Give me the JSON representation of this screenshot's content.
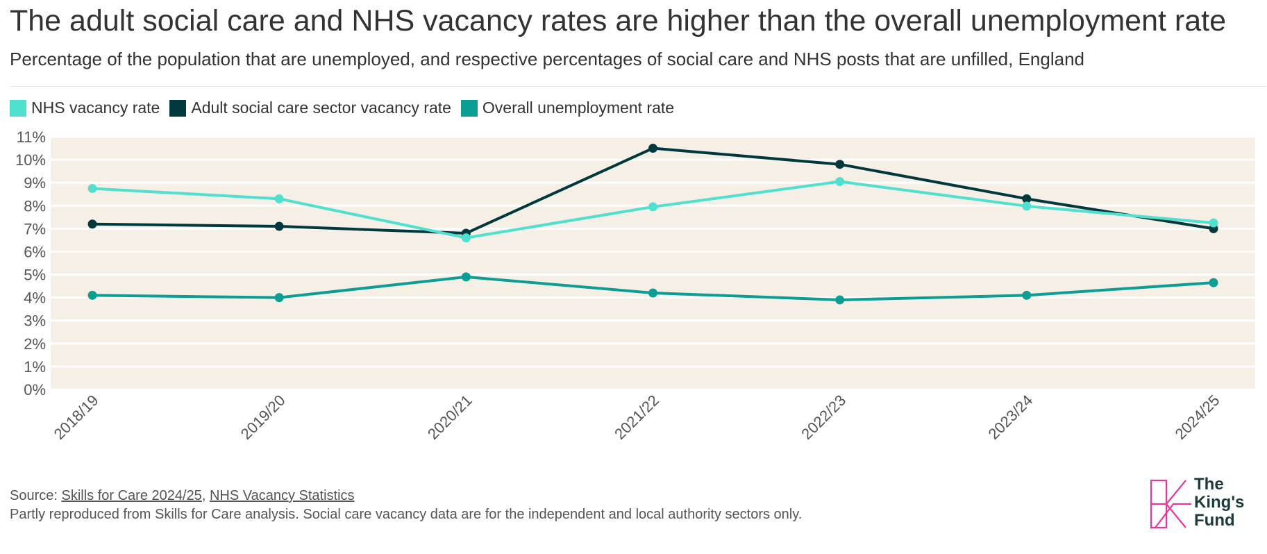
{
  "title": "The adult social care and NHS vacancy rates are higher than the overall unemployment rate",
  "subtitle": "Percentage of the population that are unemployed, and respective percentages of social care and NHS posts that are unfilled, England",
  "source": {
    "prefix": "Source: ",
    "link1": "Skills for Care 2024/25",
    "separator": ", ",
    "link2": "NHS Vacancy Statistics"
  },
  "note": "Partly reproduced from Skills for Care analysis. Social care vacancy data are for the independent and local authority sectors only.",
  "logo": {
    "line1": "The",
    "line2": "King's",
    "line3": "Fund",
    "color": "#e6389b"
  },
  "chart_data": {
    "type": "line",
    "categories": [
      "2018/19",
      "2019/20",
      "2020/21",
      "2021/22",
      "2022/23",
      "2023/24",
      "2024/25"
    ],
    "series": [
      {
        "name": "NHS vacancy rate",
        "color": "#4fe0cf",
        "values": [
          8.75,
          8.3,
          6.6,
          7.95,
          9.05,
          7.98,
          7.25
        ]
      },
      {
        "name": "Adult social care sector vacancy rate",
        "color": "#00393d",
        "values": [
          7.2,
          7.1,
          6.8,
          10.5,
          9.8,
          8.3,
          7.0
        ]
      },
      {
        "name": "Overall unemployment rate",
        "color": "#0a9e94",
        "values": [
          4.1,
          4.0,
          4.9,
          4.2,
          3.9,
          4.1,
          4.65
        ]
      }
    ],
    "yticks": [
      "0%",
      "1%",
      "2%",
      "3%",
      "4%",
      "5%",
      "6%",
      "7%",
      "8%",
      "9%",
      "10%",
      "11%"
    ],
    "ylim": [
      0,
      11
    ],
    "grid": true,
    "legend": "top-left",
    "plot_background": "#f5efe5"
  }
}
